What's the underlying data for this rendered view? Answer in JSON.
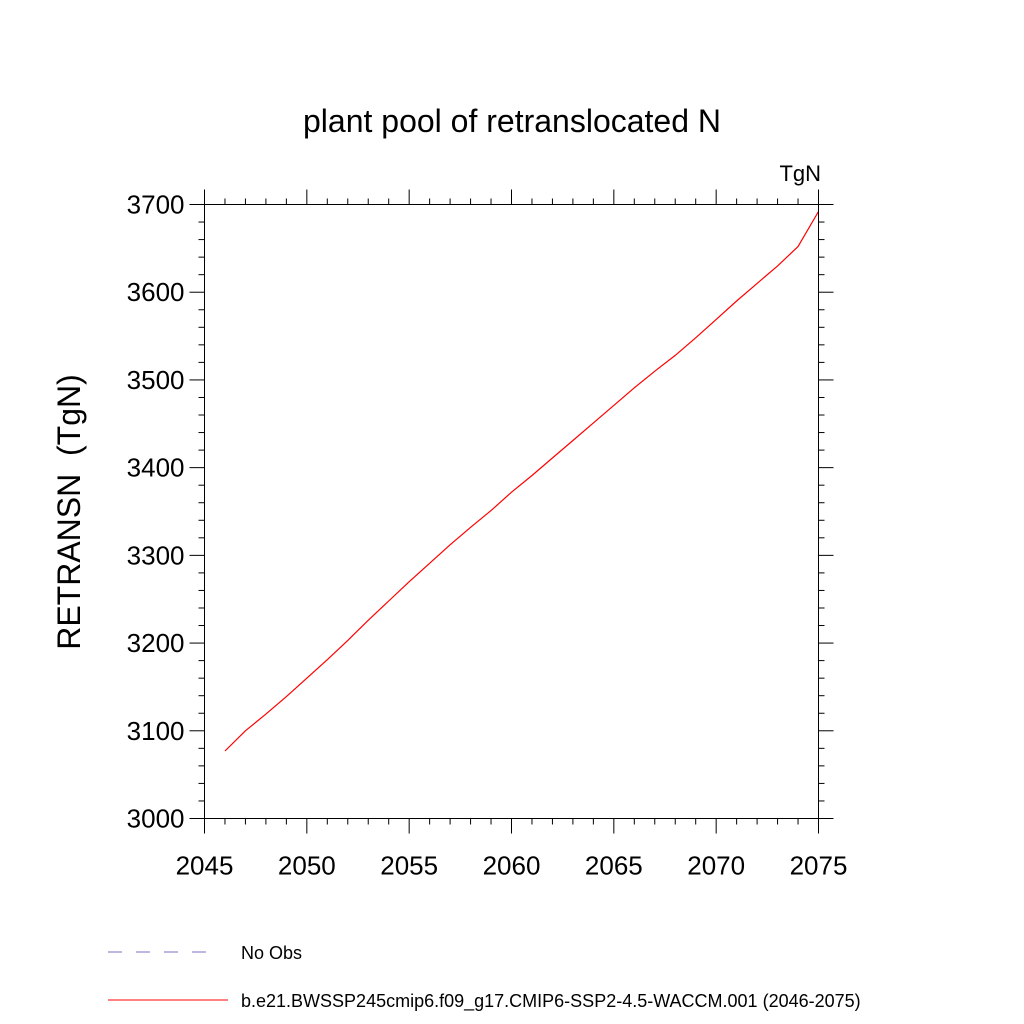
{
  "chart_data": {
    "type": "line",
    "title": "plant pool of retranslocated N",
    "units_label": "TgN",
    "ylabel": "RETRANSN  (TgN)",
    "xlabel": "",
    "xlim": [
      2045,
      2075
    ],
    "ylim": [
      3000,
      3700
    ],
    "x_ticks": [
      2045,
      2050,
      2055,
      2060,
      2065,
      2070,
      2075
    ],
    "y_ticks": [
      3000,
      3100,
      3200,
      3300,
      3400,
      3500,
      3600,
      3700
    ],
    "x_tick_labels": [
      "2045",
      "2050",
      "2055",
      "2060",
      "2065",
      "2070",
      "2075"
    ],
    "y_tick_labels": [
      "3000",
      "3100",
      "3200",
      "3300",
      "3400",
      "3500",
      "3600",
      "3700"
    ],
    "grid": false,
    "legend_position": "bottom",
    "series": [
      {
        "name": "b.e21.BWSSP245cmip6.f09_g17.CMIP6-SSP2-4.5-WACCM.001 (2046-2075)",
        "color": "#ff0000",
        "line_style": "solid",
        "x": [
          2046,
          2047,
          2048,
          2049,
          2050,
          2051,
          2052,
          2053,
          2054,
          2055,
          2056,
          2057,
          2058,
          2059,
          2060,
          2061,
          2062,
          2063,
          2064,
          2065,
          2066,
          2067,
          2068,
          2069,
          2070,
          2071,
          2072,
          2073,
          2074,
          2075
        ],
        "y": [
          3077,
          3100,
          3119,
          3139,
          3160,
          3181,
          3203,
          3226,
          3248,
          3270,
          3291,
          3312,
          3332,
          3351,
          3372,
          3391,
          3411,
          3431,
          3451,
          3471,
          3491,
          3510,
          3528,
          3548,
          3569,
          3590,
          3610,
          3630,
          3652,
          3692
        ]
      }
    ],
    "legend": [
      {
        "label": "No Obs",
        "color": "#7b6fc6",
        "line_style": "dashed"
      },
      {
        "label": "b.e21.BWSSP245cmip6.f09_g17.CMIP6-SSP2-4.5-WACCM.001 (2046-2075)",
        "color": "#ff0000",
        "line_style": "solid"
      }
    ]
  }
}
